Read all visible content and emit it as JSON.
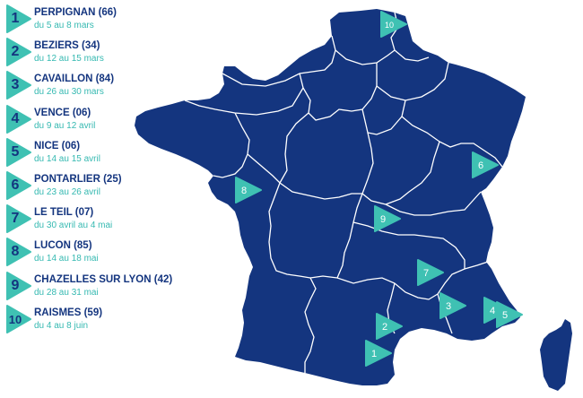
{
  "colors": {
    "land": "#14357f",
    "border": "#ffffff",
    "accent": "#3fc1b3",
    "text_dark": "#14357f",
    "text_accent": "#35b9b1"
  },
  "marker_icon": "play-triangle-icon",
  "legend": [
    {
      "num": "1",
      "city": "PERPIGNAN (66)",
      "dates": "du 5 au 8 mars"
    },
    {
      "num": "2",
      "city": "BEZIERS (34)",
      "dates": "du 12 au 15 mars"
    },
    {
      "num": "3",
      "city": "CAVAILLON (84)",
      "dates": "du 26 au 30 mars"
    },
    {
      "num": "4",
      "city": "VENCE (06)",
      "dates": "du 9 au 12 avril"
    },
    {
      "num": "5",
      "city": "NICE (06)",
      "dates": "du 14 au 15 avril"
    },
    {
      "num": "6",
      "city": "PONTARLIER (25)",
      "dates": "du 23 au 26 avril"
    },
    {
      "num": "7",
      "city": "LE TEIL (07)",
      "dates": "du 30 avril au 4 mai"
    },
    {
      "num": "8",
      "city": "LUCON (85)",
      "dates": "du 14 au 18 mai"
    },
    {
      "num": "9",
      "city": "CHAZELLES SUR LYON (42)",
      "dates": "du 28 au 31 mai"
    },
    {
      "num": "10",
      "city": "RAISMES (59)",
      "dates": "du 4 au 8 juin"
    }
  ],
  "map_markers": [
    "1",
    "2",
    "3",
    "4",
    "5",
    "6",
    "7",
    "8",
    "9",
    "10"
  ]
}
